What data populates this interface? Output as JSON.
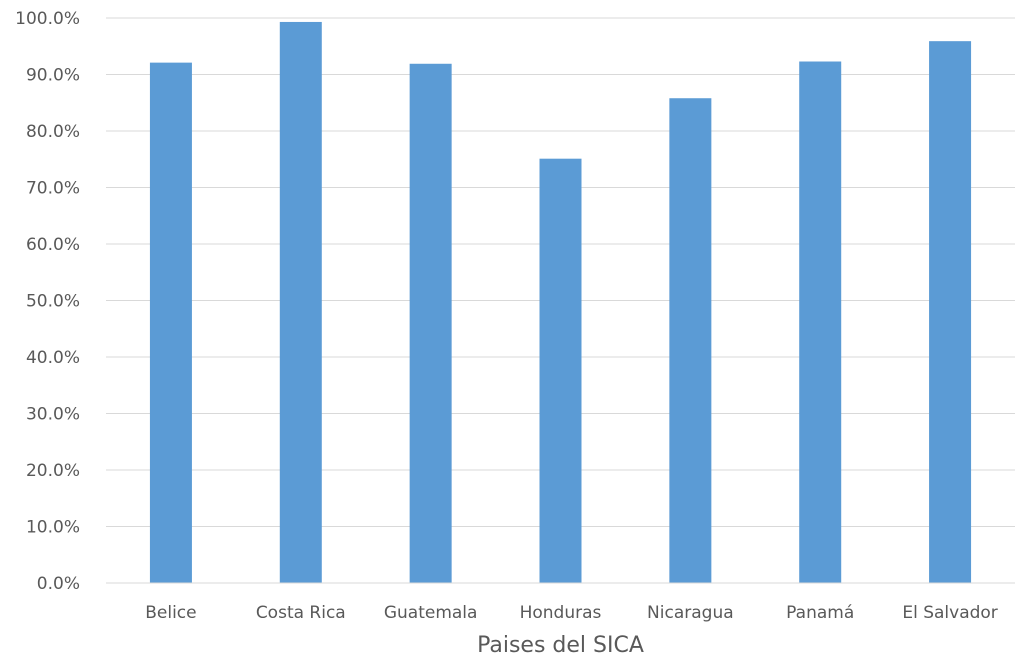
{
  "chart_data": {
    "type": "bar",
    "title": "",
    "xlabel": "Paises del SICA",
    "ylabel": "",
    "categories": [
      "Belice",
      "Costa Rica",
      "Guatemala",
      "Honduras",
      "Nicaragua",
      "Panamá",
      "El Salvador"
    ],
    "values": [
      92.1,
      99.3,
      91.9,
      75.1,
      85.8,
      92.3,
      95.9
    ],
    "ylim": [
      0,
      100
    ],
    "y_ticks": [
      "0.0%",
      "10.0%",
      "20.0%",
      "30.0%",
      "40.0%",
      "50.0%",
      "60.0%",
      "70.0%",
      "80.0%",
      "90.0%",
      "100.0%"
    ],
    "value_unit": "%",
    "grid": true,
    "legend": "none",
    "bar_color": "#5b9bd5",
    "grid_color": "#d9d9d9",
    "text_color": "#595959"
  }
}
